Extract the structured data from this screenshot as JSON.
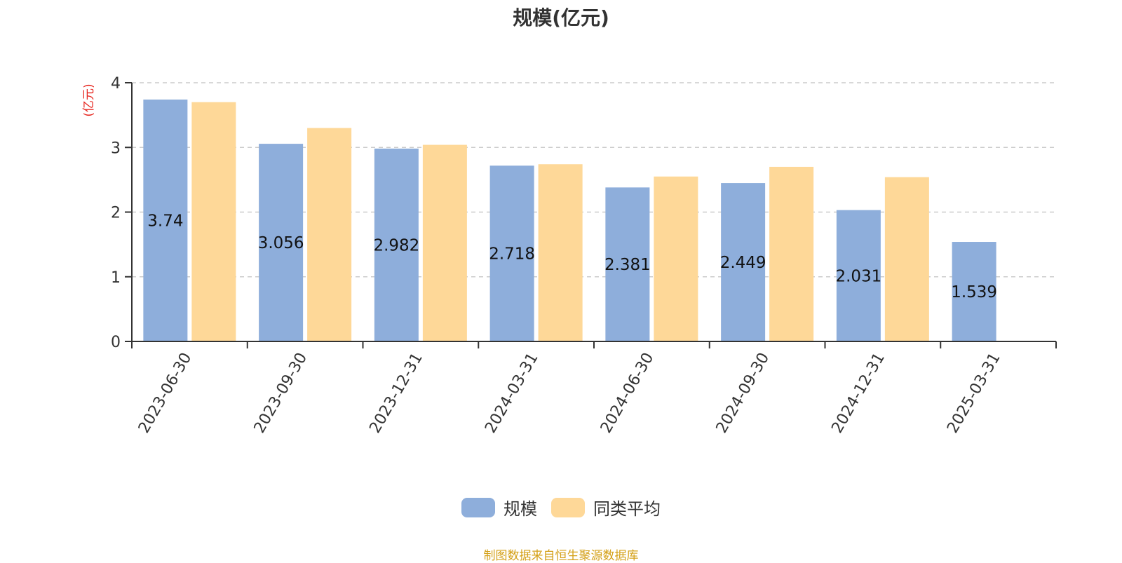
{
  "colors": {
    "series_primary": "#8eaedb",
    "series_secondary": "#fed898",
    "grid": "#cccccc",
    "axis": "#333333",
    "unit_label": "#e6261f",
    "source_note": "#d4a017"
  },
  "source_note": "制图数据来自恒生聚源数据库",
  "chart_data": {
    "type": "bar",
    "title": "规模(亿元)",
    "ylabel": "(亿元)",
    "xlabel": "",
    "ylim": [
      0,
      4
    ],
    "yticks": [
      0,
      1,
      2,
      3,
      4
    ],
    "grid": true,
    "legend_position": "bottom-center",
    "categories": [
      "2023-06-30",
      "2023-09-30",
      "2023-12-31",
      "2024-03-31",
      "2024-06-30",
      "2024-09-30",
      "2024-12-31",
      "2025-03-31"
    ],
    "series": [
      {
        "name": "规模",
        "values": [
          3.74,
          3.056,
          2.982,
          2.718,
          2.381,
          2.449,
          2.031,
          1.539
        ],
        "data_labels": [
          "3.74",
          "3.056",
          "2.982",
          "2.718",
          "2.381",
          "2.449",
          "2.031",
          "1.539"
        ]
      },
      {
        "name": "同类平均",
        "values": [
          3.7,
          3.3,
          3.04,
          2.74,
          2.55,
          2.7,
          2.54,
          null
        ]
      }
    ]
  }
}
